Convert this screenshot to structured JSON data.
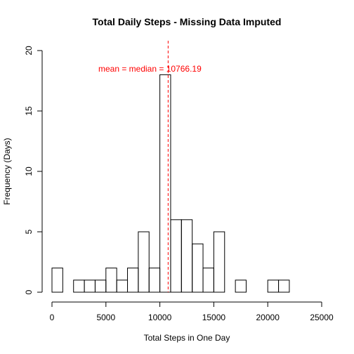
{
  "chart_data": {
    "type": "bar",
    "title": "Total Daily Steps - Missing Data Imputed",
    "xlabel": "Total Steps in One Day",
    "ylabel": "Frequency (Days)",
    "xlim": [
      0,
      25000
    ],
    "ylim": [
      0,
      20
    ],
    "x_ticks": [
      0,
      5000,
      10000,
      15000,
      20000,
      25000
    ],
    "y_ticks": [
      0,
      5,
      10,
      15,
      20
    ],
    "bin_width": 1000,
    "bins": [
      {
        "start": 0,
        "end": 1000,
        "count": 2
      },
      {
        "start": 1000,
        "end": 2000,
        "count": 0
      },
      {
        "start": 2000,
        "end": 3000,
        "count": 1
      },
      {
        "start": 3000,
        "end": 4000,
        "count": 1
      },
      {
        "start": 4000,
        "end": 5000,
        "count": 1
      },
      {
        "start": 5000,
        "end": 6000,
        "count": 2
      },
      {
        "start": 6000,
        "end": 7000,
        "count": 1
      },
      {
        "start": 7000,
        "end": 8000,
        "count": 2
      },
      {
        "start": 8000,
        "end": 9000,
        "count": 5
      },
      {
        "start": 9000,
        "end": 10000,
        "count": 2
      },
      {
        "start": 10000,
        "end": 11000,
        "count": 18
      },
      {
        "start": 11000,
        "end": 12000,
        "count": 6
      },
      {
        "start": 12000,
        "end": 13000,
        "count": 6
      },
      {
        "start": 13000,
        "end": 14000,
        "count": 4
      },
      {
        "start": 14000,
        "end": 15000,
        "count": 2
      },
      {
        "start": 15000,
        "end": 16000,
        "count": 5
      },
      {
        "start": 16000,
        "end": 17000,
        "count": 0
      },
      {
        "start": 17000,
        "end": 18000,
        "count": 1
      },
      {
        "start": 18000,
        "end": 19000,
        "count": 0
      },
      {
        "start": 19000,
        "end": 20000,
        "count": 0
      },
      {
        "start": 20000,
        "end": 21000,
        "count": 1
      },
      {
        "start": 21000,
        "end": 22000,
        "count": 1
      }
    ],
    "reference_line": {
      "x": 10766.19,
      "color": "#ff0000",
      "style": "dashed"
    },
    "annotation": {
      "text": "mean = median = 10766.19",
      "x": 10766.19,
      "y": 18.5,
      "color": "#ff0000"
    },
    "grid": false,
    "legend": "none"
  }
}
